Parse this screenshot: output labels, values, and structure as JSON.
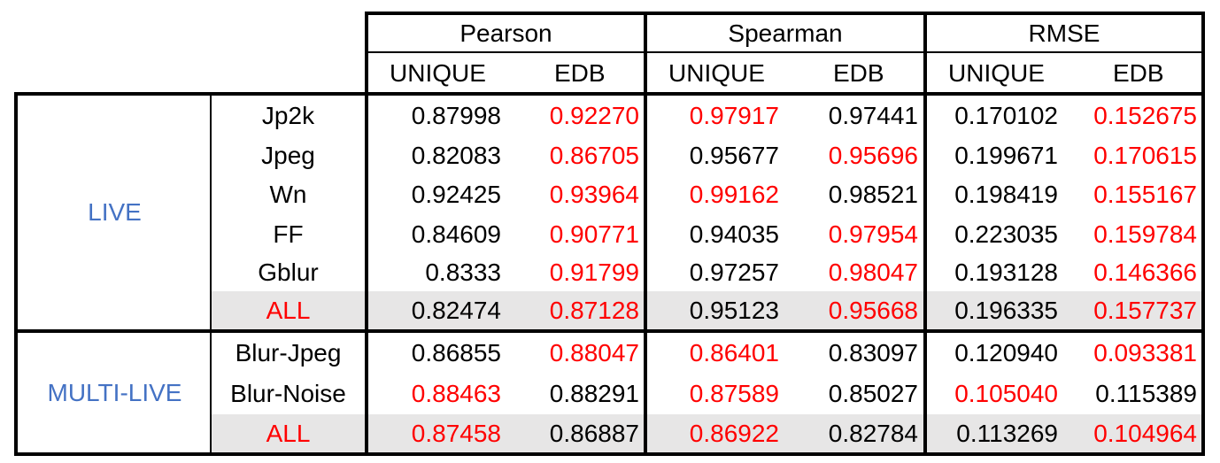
{
  "header": {
    "metrics": [
      "Pearson",
      "Spearman",
      "RMSE"
    ],
    "sub": [
      "UNIQUE",
      "EDB",
      "UNIQUE",
      "EDB",
      "UNIQUE",
      "EDB"
    ]
  },
  "groups": [
    {
      "name": "LIVE",
      "rows": [
        {
          "label": "Jp2k",
          "values": [
            "0.87998",
            "0.92270",
            "0.97917",
            "0.97441",
            "0.170102",
            "0.152675"
          ],
          "red": [
            false,
            true,
            true,
            false,
            false,
            true
          ]
        },
        {
          "label": "Jpeg",
          "values": [
            "0.82083",
            "0.86705",
            "0.95677",
            "0.95696",
            "0.199671",
            "0.170615"
          ],
          "red": [
            false,
            true,
            false,
            true,
            false,
            true
          ]
        },
        {
          "label": "Wn",
          "values": [
            "0.92425",
            "0.93964",
            "0.99162",
            "0.98521",
            "0.198419",
            "0.155167"
          ],
          "red": [
            false,
            true,
            true,
            false,
            false,
            true
          ]
        },
        {
          "label": "FF",
          "values": [
            "0.84609",
            "0.90771",
            "0.94035",
            "0.97954",
            "0.223035",
            "0.159784"
          ],
          "red": [
            false,
            true,
            false,
            true,
            false,
            true
          ]
        },
        {
          "label": "Gblur",
          "values": [
            "0.8333",
            "0.91799",
            "0.97257",
            "0.98047",
            "0.193128",
            "0.146366"
          ],
          "red": [
            false,
            true,
            false,
            true,
            false,
            true
          ]
        },
        {
          "label": "ALL",
          "values": [
            "0.82474",
            "0.87128",
            "0.95123",
            "0.95668",
            "0.196335",
            "0.157737"
          ],
          "red": [
            false,
            true,
            false,
            true,
            false,
            true
          ],
          "label_red": true,
          "shaded": true
        }
      ]
    },
    {
      "name": "MULTI-LIVE",
      "rows": [
        {
          "label": "Blur-Jpeg",
          "values": [
            "0.86855",
            "0.88047",
            "0.86401",
            "0.83097",
            "0.120940",
            "0.093381"
          ],
          "red": [
            false,
            true,
            true,
            false,
            false,
            true
          ]
        },
        {
          "label": "Blur-Noise",
          "values": [
            "0.88463",
            "0.88291",
            "0.87589",
            "0.85027",
            "0.105040",
            "0.115389"
          ],
          "red": [
            true,
            false,
            true,
            false,
            true,
            false
          ]
        },
        {
          "label": "ALL",
          "values": [
            "0.87458",
            "0.86887",
            "0.86922",
            "0.82784",
            "0.113269",
            "0.104964"
          ],
          "red": [
            true,
            false,
            true,
            false,
            false,
            true
          ],
          "label_red": true,
          "shaded": true
        }
      ]
    }
  ],
  "colors": {
    "highlight": "#ff0000",
    "group_label": "#4472c4",
    "shade": "#e7e6e6"
  }
}
